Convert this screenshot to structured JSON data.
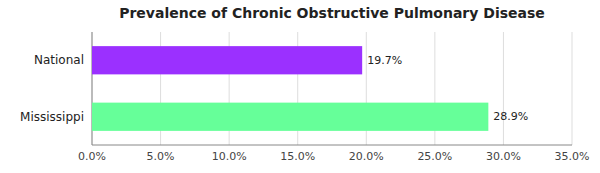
{
  "chart_data": {
    "type": "bar",
    "orientation": "horizontal",
    "title": "Prevalence of Chronic Obstructive Pulmonary Disease",
    "categories": [
      "National",
      "Mississippi"
    ],
    "values": [
      19.7,
      28.9
    ],
    "value_labels": [
      "19.7%",
      "28.9%"
    ],
    "data_labels": true,
    "colors": [
      "#9B30FF",
      "#66FF99"
    ],
    "xlim": [
      0,
      35
    ],
    "xticks": [
      {
        "value": 0,
        "label": "0.0%"
      },
      {
        "value": 5,
        "label": "5.0%"
      },
      {
        "value": 10,
        "label": "10.0%"
      },
      {
        "value": 15,
        "label": "15.0%"
      },
      {
        "value": 20,
        "label": "20.0%"
      },
      {
        "value": 25,
        "label": "25.0%"
      },
      {
        "value": 30,
        "label": "30.0%"
      },
      {
        "value": 35,
        "label": "35.0%"
      }
    ],
    "grid": true
  }
}
